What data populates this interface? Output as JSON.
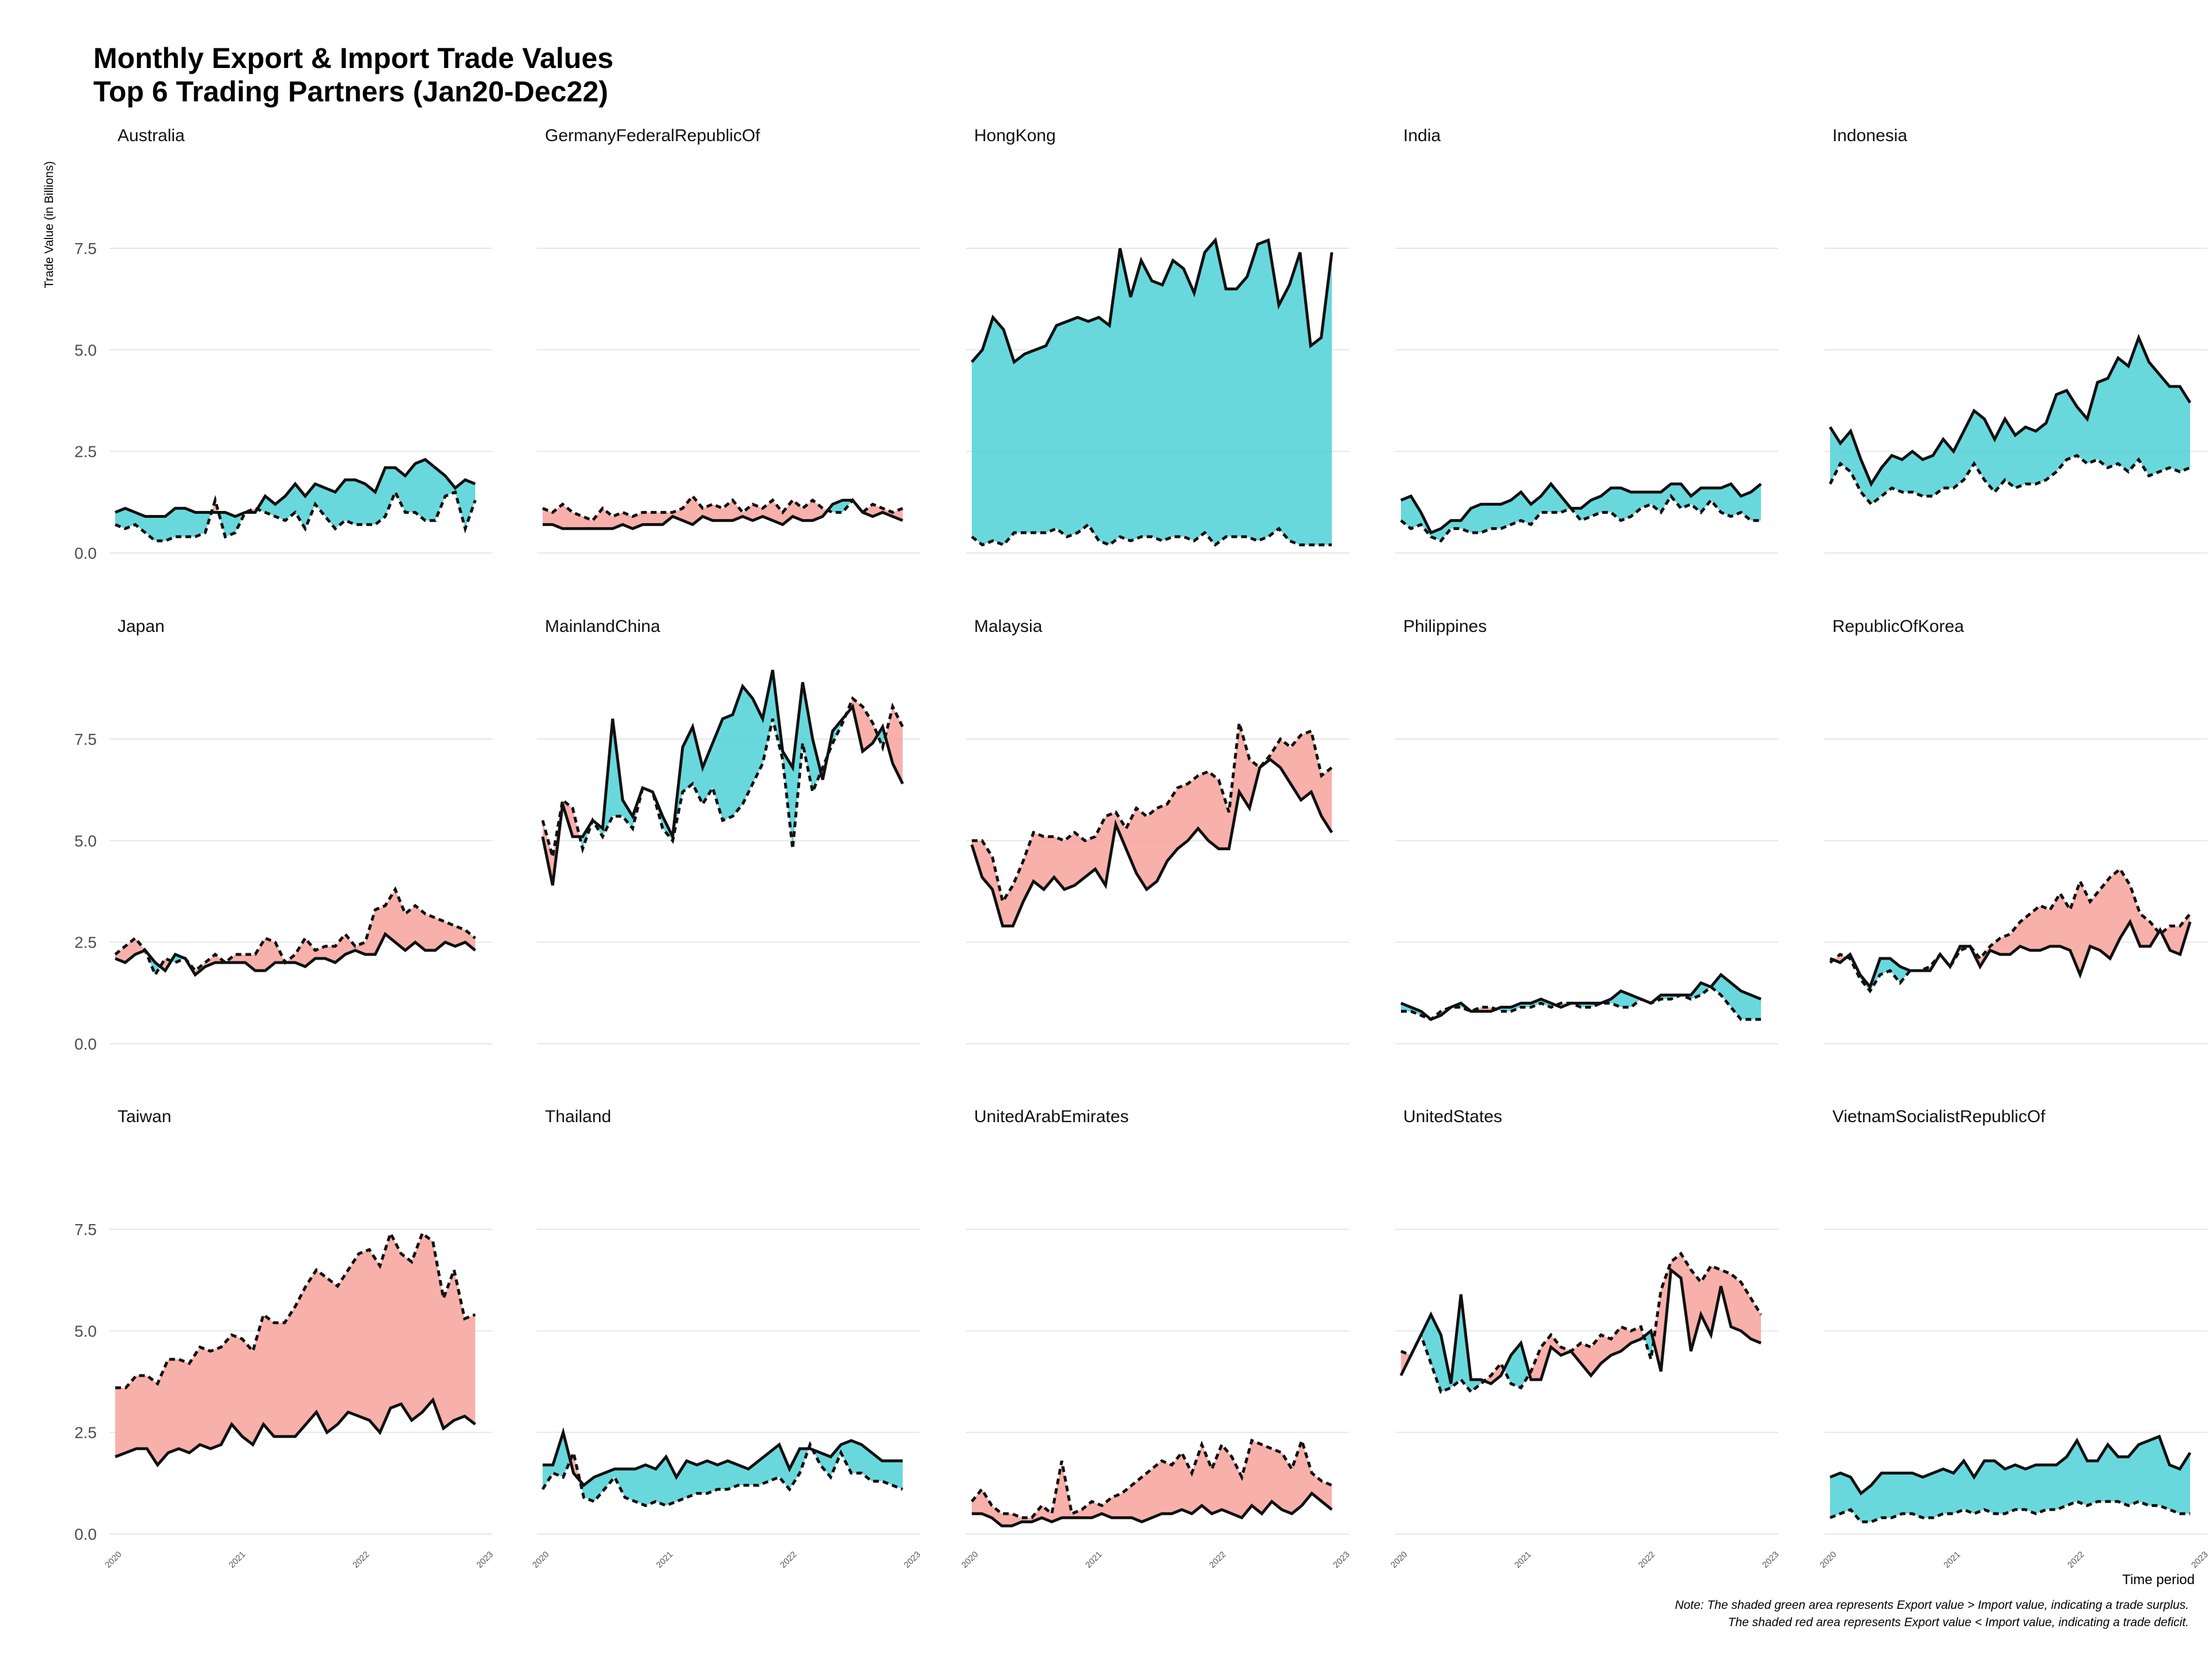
{
  "chart": {
    "title_line1": "Monthly Export & Import Trade Values",
    "title_line2": "Top 6 Trading Partners (Jan20-Dec22)",
    "ylabel": "Trade Value (in Billions)",
    "xlabel": "Time period",
    "note_line1": "Note: The shaded green area represents Export value > Import value, indicating a trade surplus.",
    "note_line2": "The shaded red area represents Export value < Import value, indicating a trade deficit."
  },
  "chart_data": {
    "type": "area",
    "title": "Monthly Export & Import Trade Values Top 6 Trading Partners (Jan20-Dec22)",
    "xlabel": "Time period",
    "ylabel": "Trade Value (in Billions)",
    "x_ticks": [
      "2020",
      "2021",
      "2022",
      "2023"
    ],
    "y_ticks": [
      "0.0",
      "2.5",
      "5.0",
      "7.5"
    ],
    "ylim": [
      0,
      9.5
    ],
    "xlim": [
      2020,
      2023
    ],
    "grid": "horizontal",
    "facet_layout": "3 rows x 5 columns",
    "colors": {
      "surplus": "#4fd1d6",
      "deficit": "#f7a29b",
      "line": "#111111"
    },
    "line_styles": {
      "export": "solid",
      "import": "dashed"
    },
    "months_start": "2020-01",
    "panels": [
      {
        "name": "Australia",
        "export": [
          1.0,
          1.1,
          1.0,
          0.9,
          0.9,
          0.9,
          1.1,
          1.1,
          1.0,
          1.0,
          1.0,
          1.0,
          0.9,
          1.0,
          1.0,
          1.4,
          1.2,
          1.4,
          1.7,
          1.4,
          1.7,
          1.6,
          1.5,
          1.8,
          1.8,
          1.7,
          1.5,
          2.1,
          2.1,
          1.9,
          2.2,
          2.3,
          2.1,
          1.9,
          1.6,
          1.8,
          1.7
        ],
        "import": [
          0.7,
          0.6,
          0.7,
          0.5,
          0.3,
          0.3,
          0.4,
          0.4,
          0.4,
          0.5,
          1.3,
          0.4,
          0.5,
          1.0,
          1.1,
          1.0,
          0.9,
          0.8,
          1.0,
          0.6,
          1.2,
          0.9,
          0.6,
          0.8,
          0.7,
          0.7,
          0.7,
          0.9,
          1.5,
          1.0,
          1.0,
          0.8,
          0.8,
          1.4,
          1.5,
          0.6,
          1.3
        ]
      },
      {
        "name": "GermanyFederalRepublicOf",
        "export": [
          0.7,
          0.7,
          0.6,
          0.6,
          0.6,
          0.6,
          0.6,
          0.6,
          0.7,
          0.6,
          0.7,
          0.7,
          0.7,
          0.9,
          0.8,
          0.7,
          0.9,
          0.8,
          0.8,
          0.8,
          0.9,
          0.8,
          0.9,
          0.8,
          0.7,
          0.9,
          0.8,
          0.8,
          0.9,
          1.2,
          1.3,
          1.3,
          1.0,
          0.9,
          1.0,
          0.9,
          0.8
        ],
        "import": [
          1.1,
          1.0,
          1.2,
          1.0,
          0.9,
          0.8,
          1.1,
          0.9,
          1.0,
          0.9,
          1.0,
          1.0,
          1.0,
          1.0,
          1.1,
          1.4,
          1.1,
          1.2,
          1.1,
          1.3,
          1.0,
          1.2,
          1.1,
          1.3,
          1.0,
          1.3,
          1.1,
          1.3,
          1.1,
          1.0,
          1.0,
          1.3,
          1.0,
          1.2,
          1.1,
          1.0,
          1.1
        ]
      },
      {
        "name": "HongKong",
        "export": [
          4.7,
          5.0,
          5.8,
          5.5,
          4.7,
          4.9,
          5.0,
          5.1,
          5.6,
          5.7,
          5.8,
          5.7,
          5.8,
          5.6,
          7.5,
          6.3,
          7.2,
          6.7,
          6.6,
          7.2,
          7.0,
          6.4,
          7.4,
          7.7,
          6.5,
          6.5,
          6.8,
          7.6,
          7.7,
          6.1,
          6.6,
          7.4,
          5.1,
          5.3,
          7.4
        ],
        "import": [
          0.4,
          0.2,
          0.3,
          0.2,
          0.5,
          0.5,
          0.5,
          0.5,
          0.6,
          0.4,
          0.5,
          0.7,
          0.3,
          0.2,
          0.4,
          0.3,
          0.4,
          0.4,
          0.3,
          0.4,
          0.4,
          0.3,
          0.5,
          0.2,
          0.4,
          0.4,
          0.4,
          0.3,
          0.4,
          0.6,
          0.3,
          0.2,
          0.2,
          0.2,
          0.2
        ]
      },
      {
        "name": "India",
        "export": [
          1.3,
          1.4,
          1.0,
          0.5,
          0.6,
          0.8,
          0.8,
          1.1,
          1.2,
          1.2,
          1.2,
          1.3,
          1.5,
          1.2,
          1.4,
          1.7,
          1.4,
          1.1,
          1.1,
          1.3,
          1.4,
          1.6,
          1.6,
          1.5,
          1.5,
          1.5,
          1.5,
          1.7,
          1.7,
          1.4,
          1.6,
          1.6,
          1.6,
          1.7,
          1.4,
          1.5,
          1.7
        ],
        "import": [
          0.8,
          0.6,
          0.7,
          0.4,
          0.3,
          0.6,
          0.6,
          0.5,
          0.5,
          0.6,
          0.6,
          0.7,
          0.8,
          0.7,
          1.0,
          1.0,
          1.0,
          1.1,
          0.8,
          0.9,
          1.0,
          1.0,
          0.8,
          0.9,
          1.1,
          1.2,
          1.0,
          1.4,
          1.1,
          1.2,
          1.0,
          1.3,
          1.0,
          0.9,
          1.0,
          0.8,
          0.8
        ]
      },
      {
        "name": "Indonesia",
        "export": [
          3.1,
          2.7,
          3.0,
          2.3,
          1.7,
          2.1,
          2.4,
          2.3,
          2.5,
          2.3,
          2.4,
          2.8,
          2.5,
          3.0,
          3.5,
          3.3,
          2.8,
          3.3,
          2.9,
          3.1,
          3.0,
          3.2,
          3.9,
          4.0,
          3.6,
          3.3,
          4.2,
          4.3,
          4.8,
          4.6,
          5.3,
          4.7,
          4.4,
          4.1,
          4.1,
          3.7
        ],
        "import": [
          1.7,
          2.2,
          2.0,
          1.5,
          1.2,
          1.4,
          1.6,
          1.5,
          1.5,
          1.4,
          1.4,
          1.6,
          1.6,
          1.8,
          2.2,
          1.8,
          1.5,
          1.8,
          1.6,
          1.7,
          1.7,
          1.8,
          2.0,
          2.3,
          2.4,
          2.2,
          2.3,
          2.1,
          2.2,
          2.0,
          2.3,
          1.9,
          2.0,
          2.1,
          2.0,
          2.1
        ]
      },
      {
        "name": "Japan",
        "export": [
          2.1,
          2.0,
          2.2,
          2.3,
          2.0,
          1.8,
          2.2,
          2.1,
          1.7,
          1.9,
          2.0,
          2.0,
          2.0,
          2.0,
          1.8,
          1.8,
          2.0,
          2.0,
          2.0,
          1.9,
          2.1,
          2.1,
          2.0,
          2.2,
          2.3,
          2.2,
          2.2,
          2.7,
          2.5,
          2.3,
          2.5,
          2.3,
          2.3,
          2.5,
          2.4,
          2.5,
          2.3
        ],
        "import": [
          2.2,
          2.4,
          2.6,
          2.3,
          1.7,
          2.1,
          2.0,
          2.1,
          1.8,
          2.0,
          2.2,
          2.0,
          2.2,
          2.2,
          2.2,
          2.6,
          2.5,
          2.0,
          2.2,
          2.6,
          2.3,
          2.4,
          2.4,
          2.7,
          2.4,
          2.5,
          3.3,
          3.4,
          3.8,
          3.2,
          3.4,
          3.2,
          3.1,
          3.0,
          2.9,
          2.8,
          2.6
        ]
      },
      {
        "name": "MainlandChina",
        "export": [
          5.1,
          3.9,
          5.9,
          5.1,
          5.1,
          5.5,
          5.3,
          8.0,
          6.0,
          5.6,
          6.3,
          6.2,
          5.6,
          5.1,
          7.3,
          7.8,
          6.8,
          7.4,
          8.0,
          8.1,
          8.8,
          8.5,
          8.0,
          9.2,
          7.2,
          6.8,
          8.9,
          7.5,
          6.5,
          7.7,
          8.0,
          8.3,
          7.2,
          7.4,
          7.8,
          6.9,
          6.4
        ],
        "import": [
          5.5,
          4.6,
          6.0,
          5.8,
          4.8,
          5.5,
          5.1,
          5.6,
          5.6,
          5.3,
          6.3,
          6.2,
          5.3,
          5.0,
          6.2,
          6.4,
          5.9,
          6.3,
          5.5,
          5.6,
          5.9,
          6.4,
          6.9,
          8.0,
          7.0,
          4.8,
          7.4,
          6.2,
          6.8,
          7.4,
          7.9,
          8.5,
          8.3,
          7.9,
          7.3,
          8.3,
          7.8
        ]
      },
      {
        "name": "Malaysia",
        "export": [
          4.9,
          4.1,
          3.8,
          2.9,
          2.9,
          3.5,
          4.0,
          3.8,
          4.1,
          3.8,
          3.9,
          4.1,
          4.3,
          3.9,
          5.4,
          4.8,
          4.2,
          3.8,
          4.0,
          4.5,
          4.8,
          5.0,
          5.3,
          5.0,
          4.8,
          4.8,
          6.2,
          5.8,
          6.8,
          7.0,
          6.8,
          6.4,
          6.0,
          6.2,
          5.6,
          5.2
        ],
        "import": [
          5.0,
          5.0,
          4.6,
          3.5,
          3.9,
          4.5,
          5.2,
          5.1,
          5.1,
          5.0,
          5.2,
          5.0,
          5.1,
          5.6,
          5.7,
          5.3,
          5.8,
          5.6,
          5.8,
          5.9,
          6.3,
          6.4,
          6.6,
          6.7,
          6.5,
          5.7,
          7.9,
          7.0,
          6.8,
          7.1,
          7.5,
          7.3,
          7.6,
          7.7,
          6.6,
          6.8,
          6.2
        ]
      },
      {
        "name": "Philippines",
        "export": [
          1.0,
          0.9,
          0.8,
          0.6,
          0.7,
          0.9,
          1.0,
          0.8,
          0.8,
          0.8,
          0.9,
          0.9,
          1.0,
          1.0,
          1.1,
          1.0,
          0.9,
          1.0,
          1.0,
          1.0,
          1.0,
          1.1,
          1.3,
          1.2,
          1.1,
          1.0,
          1.2,
          1.2,
          1.2,
          1.2,
          1.5,
          1.4,
          1.7,
          1.5,
          1.3,
          1.2,
          1.1
        ],
        "import": [
          0.8,
          0.8,
          0.7,
          0.6,
          0.8,
          0.9,
          0.9,
          0.8,
          0.9,
          0.9,
          0.8,
          0.8,
          0.9,
          0.9,
          1.0,
          0.9,
          1.0,
          1.0,
          0.9,
          0.9,
          1.0,
          1.0,
          0.9,
          0.9,
          1.1,
          1.0,
          1.1,
          1.1,
          1.2,
          1.1,
          1.2,
          1.4,
          1.2,
          0.9,
          0.6,
          0.6,
          0.6
        ]
      },
      {
        "name": "RepublicOfKorea",
        "export": [
          2.1,
          2.0,
          2.2,
          1.7,
          1.4,
          2.1,
          2.1,
          1.9,
          1.8,
          1.8,
          1.8,
          2.2,
          1.9,
          2.4,
          2.4,
          1.9,
          2.3,
          2.2,
          2.2,
          2.4,
          2.3,
          2.3,
          2.4,
          2.4,
          2.3,
          1.7,
          2.4,
          2.3,
          2.1,
          2.6,
          3.0,
          2.4,
          2.4,
          2.8,
          2.3,
          2.2,
          3.0
        ],
        "import": [
          2.0,
          2.2,
          2.1,
          1.6,
          1.3,
          1.7,
          1.8,
          1.5,
          1.8,
          1.8,
          1.9,
          2.2,
          1.9,
          2.3,
          2.4,
          2.1,
          2.4,
          2.6,
          2.7,
          3.0,
          3.2,
          3.4,
          3.3,
          3.7,
          3.3,
          4.0,
          3.5,
          3.8,
          4.1,
          4.3,
          3.9,
          3.2,
          3.0,
          2.7,
          2.9,
          2.9,
          3.2
        ]
      },
      {
        "name": "Taiwan",
        "export": [
          1.9,
          2.0,
          2.1,
          2.1,
          1.7,
          2.0,
          2.1,
          2.0,
          2.2,
          2.1,
          2.2,
          2.7,
          2.4,
          2.2,
          2.7,
          2.4,
          2.4,
          2.4,
          2.7,
          3.0,
          2.5,
          2.7,
          3.0,
          2.9,
          2.8,
          2.5,
          3.1,
          3.2,
          2.8,
          3.0,
          3.3,
          2.6,
          2.8,
          2.9,
          2.7,
          2.8
        ],
        "import": [
          3.6,
          3.6,
          3.9,
          3.9,
          3.7,
          4.3,
          4.3,
          4.2,
          4.6,
          4.5,
          4.6,
          4.9,
          4.8,
          4.5,
          5.4,
          5.2,
          5.2,
          5.6,
          6.1,
          6.5,
          6.3,
          6.1,
          6.5,
          6.9,
          7.0,
          6.6,
          7.4,
          6.9,
          6.7,
          7.4,
          7.2,
          5.8,
          6.5,
          5.3,
          5.4
        ]
      },
      {
        "name": "Thailand",
        "export": [
          1.7,
          1.7,
          2.5,
          1.5,
          1.2,
          1.4,
          1.5,
          1.6,
          1.6,
          1.6,
          1.7,
          1.6,
          1.9,
          1.4,
          1.8,
          1.7,
          1.8,
          1.7,
          1.8,
          1.7,
          1.6,
          1.8,
          2.0,
          2.2,
          1.6,
          2.1,
          2.1,
          2.0,
          1.9,
          2.2,
          2.3,
          2.2,
          2.0,
          1.8,
          1.8,
          1.8
        ],
        "import": [
          1.1,
          1.5,
          1.4,
          2.0,
          0.9,
          0.8,
          1.1,
          1.4,
          0.9,
          0.8,
          0.7,
          0.8,
          0.7,
          0.8,
          0.9,
          1.0,
          1.0,
          1.1,
          1.1,
          1.2,
          1.2,
          1.2,
          1.3,
          1.4,
          1.1,
          1.5,
          2.2,
          1.7,
          1.4,
          2.0,
          1.5,
          1.5,
          1.3,
          1.3,
          1.2,
          1.1
        ]
      },
      {
        "name": "UnitedArabEmirates",
        "export": [
          0.5,
          0.5,
          0.4,
          0.2,
          0.2,
          0.3,
          0.3,
          0.4,
          0.3,
          0.4,
          0.4,
          0.4,
          0.4,
          0.5,
          0.4,
          0.4,
          0.4,
          0.3,
          0.4,
          0.5,
          0.5,
          0.6,
          0.5,
          0.7,
          0.5,
          0.6,
          0.5,
          0.4,
          0.7,
          0.5,
          0.8,
          0.6,
          0.5,
          0.7,
          1.0,
          0.8,
          0.6
        ],
        "import": [
          0.8,
          1.1,
          0.7,
          0.5,
          0.5,
          0.4,
          0.4,
          0.7,
          0.5,
          1.8,
          0.5,
          0.6,
          0.8,
          0.7,
          0.9,
          1.0,
          1.2,
          1.4,
          1.6,
          1.8,
          1.7,
          2.0,
          1.5,
          2.2,
          1.6,
          2.2,
          1.9,
          1.4,
          2.3,
          2.2,
          2.1,
          2.0,
          1.6,
          2.3,
          1.5,
          1.3,
          1.2
        ]
      },
      {
        "name": "UnitedStates",
        "export": [
          3.9,
          4.4,
          4.9,
          5.4,
          4.9,
          3.7,
          5.9,
          3.8,
          3.8,
          3.7,
          3.9,
          4.4,
          4.7,
          3.8,
          3.8,
          4.6,
          4.4,
          4.5,
          4.2,
          3.9,
          4.2,
          4.4,
          4.5,
          4.7,
          4.8,
          5.0,
          4.0,
          6.5,
          6.3,
          4.5,
          5.4,
          4.9,
          6.1,
          5.1,
          5.0,
          4.8,
          4.7
        ],
        "import": [
          4.5,
          4.4,
          4.9,
          4.2,
          3.5,
          3.6,
          3.8,
          3.5,
          3.7,
          3.9,
          4.2,
          3.7,
          3.6,
          4.0,
          4.6,
          4.9,
          4.6,
          4.5,
          4.7,
          4.6,
          4.9,
          4.8,
          5.1,
          5.0,
          5.1,
          4.3,
          6.0,
          6.7,
          6.9,
          6.5,
          6.2,
          6.6,
          6.5,
          6.4,
          6.2,
          5.8,
          5.4
        ]
      },
      {
        "name": "VietnamSocialistRepublicOf",
        "export": [
          1.4,
          1.5,
          1.4,
          1.0,
          1.2,
          1.5,
          1.5,
          1.5,
          1.5,
          1.4,
          1.5,
          1.6,
          1.5,
          1.8,
          1.4,
          1.8,
          1.8,
          1.6,
          1.7,
          1.6,
          1.7,
          1.7,
          1.7,
          1.9,
          2.3,
          1.8,
          1.8,
          2.2,
          1.9,
          1.9,
          2.2,
          2.3,
          2.4,
          1.7,
          1.6,
          2.0
        ],
        "import": [
          0.4,
          0.5,
          0.6,
          0.3,
          0.3,
          0.4,
          0.4,
          0.5,
          0.5,
          0.4,
          0.4,
          0.5,
          0.5,
          0.6,
          0.5,
          0.6,
          0.5,
          0.5,
          0.6,
          0.6,
          0.5,
          0.6,
          0.6,
          0.7,
          0.8,
          0.7,
          0.8,
          0.8,
          0.8,
          0.7,
          0.8,
          0.7,
          0.7,
          0.6,
          0.5,
          0.5
        ]
      }
    ]
  }
}
